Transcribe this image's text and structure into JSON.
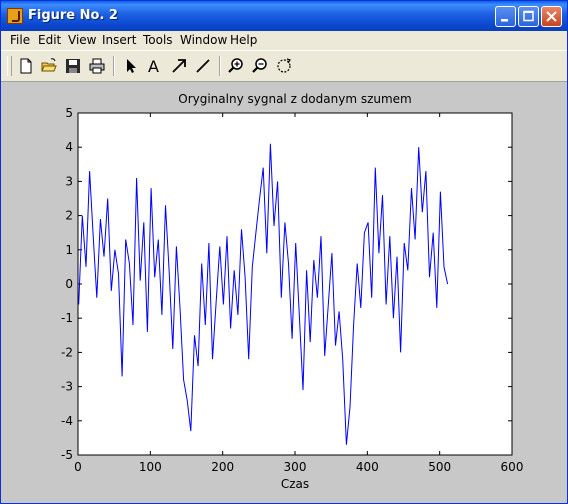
{
  "window": {
    "title": "Figure No. 2"
  },
  "menu": [
    "File",
    "Edit",
    "View",
    "Insert",
    "Tools",
    "Window",
    "Help"
  ],
  "toolbar": {
    "tools": [
      "new-file-icon",
      "open-folder-icon",
      "save-icon",
      "print-icon",
      "select-arrow-icon",
      "text-tool-icon",
      "arrow-tool-icon",
      "line-tool-icon",
      "zoom-in-icon",
      "zoom-out-icon",
      "rotate-icon"
    ]
  },
  "colors": {
    "line": "#0000ff",
    "titlebar": "#0a5fe8",
    "figure_bg": "#c8c8c8"
  },
  "chart_data": {
    "type": "line",
    "title": "Oryginalny sygnal z dodanym szumem",
    "xlabel": "Czas",
    "ylabel": "",
    "xlim": [
      0,
      600
    ],
    "ylim": [
      -5,
      5
    ],
    "xticks": [
      "0",
      "100",
      "200",
      "300",
      "400",
      "500",
      "600"
    ],
    "yticks": [
      "5",
      "4",
      "3",
      "2",
      "1",
      "0",
      "-1",
      "-2",
      "-3",
      "-4",
      "-5"
    ],
    "grid": false,
    "series": [
      {
        "x": [
          1,
          6,
          11,
          16,
          21,
          26,
          31,
          36,
          41,
          46,
          51,
          56,
          61,
          66,
          71,
          76,
          81,
          86,
          91,
          96,
          101,
          106,
          111,
          116,
          121,
          126,
          131,
          136,
          141,
          146,
          151,
          156,
          161,
          166,
          171,
          176,
          181,
          186,
          191,
          196,
          201,
          206,
          211,
          216,
          221,
          226,
          231,
          236,
          241,
          246,
          251,
          256,
          261,
          266,
          271,
          276,
          281,
          286,
          291,
          296,
          301,
          306,
          311,
          316,
          321,
          326,
          331,
          336,
          341,
          346,
          351,
          356,
          361,
          366,
          371,
          376,
          381,
          386,
          391,
          396,
          401,
          406,
          411,
          416,
          421,
          426,
          431,
          436,
          441,
          446,
          451,
          456,
          461,
          466,
          471,
          476,
          481,
          486,
          491,
          496,
          501,
          506,
          511
        ],
        "y": [
          -0.6,
          2.0,
          0.5,
          3.3,
          1.4,
          -0.4,
          1.9,
          0.8,
          2.5,
          -0.2,
          1.0,
          0.3,
          -2.7,
          1.3,
          0.6,
          -1.2,
          3.1,
          0.1,
          1.8,
          -1.4,
          2.8,
          0.2,
          1.3,
          -0.9,
          2.3,
          0.4,
          -1.9,
          1.1,
          -0.7,
          -2.8,
          -3.4,
          -4.3,
          -1.5,
          -2.4,
          0.6,
          -1.2,
          1.2,
          -2.2,
          -0.5,
          1.1,
          -0.6,
          1.4,
          -1.3,
          0.4,
          -0.9,
          1.6,
          0.2,
          -2.2,
          0.5,
          1.5,
          2.5,
          3.4,
          0.9,
          4.1,
          1.7,
          3.0,
          -0.4,
          1.8,
          0.6,
          -1.6,
          1.2,
          -0.9,
          -3.1,
          0.4,
          -1.7,
          0.7,
          -0.4,
          1.4,
          -2.1,
          -0.6,
          0.9,
          -1.8,
          -0.8,
          -2.2,
          -4.7,
          -3.6,
          -1.2,
          0.6,
          -0.7,
          1.5,
          1.8,
          -0.4,
          3.4,
          0.9,
          2.6,
          -0.6,
          1.4,
          -1.0,
          0.8,
          -2.0,
          1.2,
          0.4,
          2.8,
          1.3,
          4.0,
          2.1,
          3.3,
          0.2,
          1.5,
          -0.7,
          2.7,
          0.5,
          0.0
        ]
      }
    ]
  }
}
